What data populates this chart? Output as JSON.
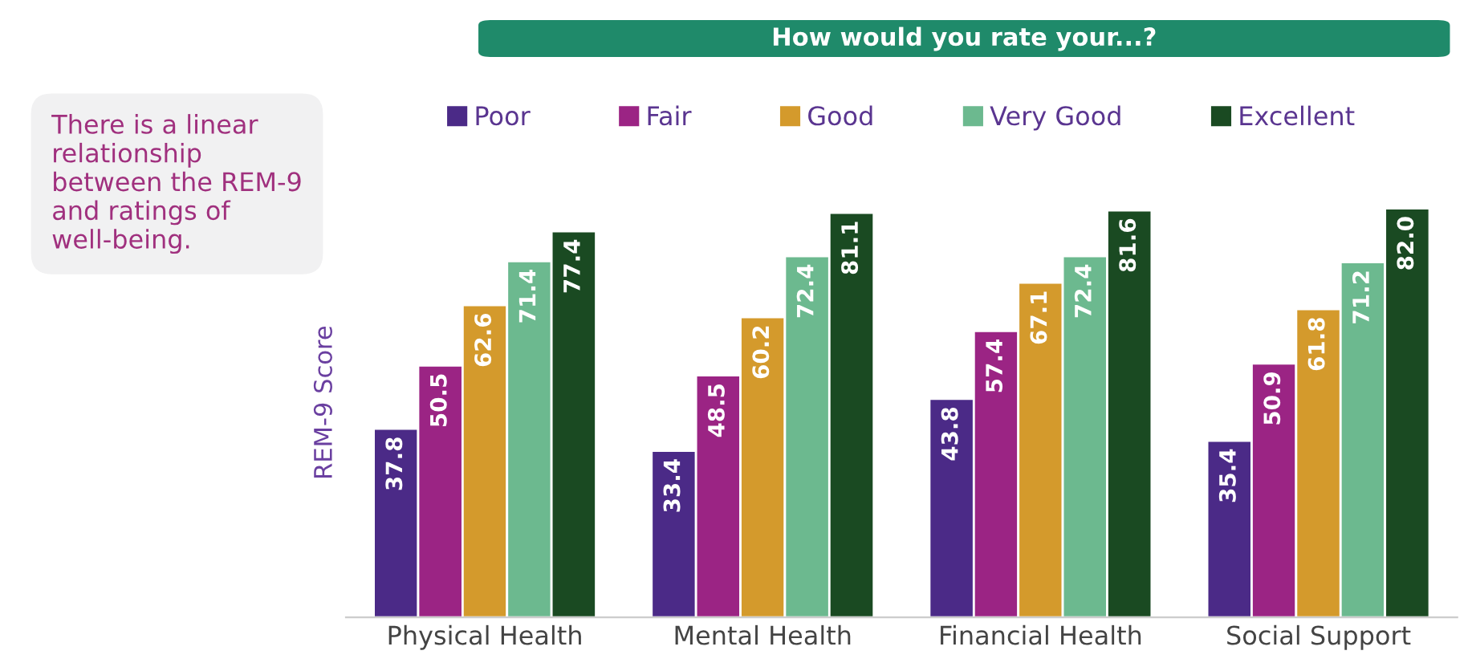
{
  "chart_data": {
    "type": "bar",
    "title": "How would you rate your...?",
    "ylabel": "REM-9 Score",
    "annotations": [
      "There is a linear relationship between the REM-9 and ratings of well-being."
    ],
    "categories": [
      "Physical Health",
      "Mental Health",
      "Financial Health",
      "Social Support"
    ],
    "series": [
      {
        "name": "Poor",
        "color": "#4b2a87",
        "values": [
          37.8,
          33.4,
          43.8,
          35.4
        ],
        "value_labels": [
          "37.8",
          "33.4",
          "43.8",
          "35.4"
        ]
      },
      {
        "name": "Fair",
        "color": "#9b2484",
        "values": [
          50.5,
          48.5,
          57.4,
          50.9
        ],
        "value_labels": [
          "50.5",
          "48.5",
          "57.4",
          "50.9"
        ]
      },
      {
        "name": "Good",
        "color": "#d49a2c",
        "values": [
          62.6,
          60.2,
          67.1,
          61.8
        ],
        "value_labels": [
          "62.6",
          "60.2",
          "67.1",
          "61.8"
        ]
      },
      {
        "name": "Very Good",
        "color": "#6cb98f",
        "values": [
          71.4,
          72.4,
          72.4,
          71.2
        ],
        "value_labels": [
          "71.4",
          "72.4",
          "72.4",
          "71.2"
        ]
      },
      {
        "name": "Excellent",
        "color": "#1a4a22",
        "values": [
          77.4,
          81.1,
          81.6,
          82.0
        ],
        "value_labels": [
          "77.4",
          "81.1",
          "81.6",
          "82.0"
        ]
      }
    ],
    "legend": "top",
    "grid": false,
    "tick_labels": "x"
  }
}
